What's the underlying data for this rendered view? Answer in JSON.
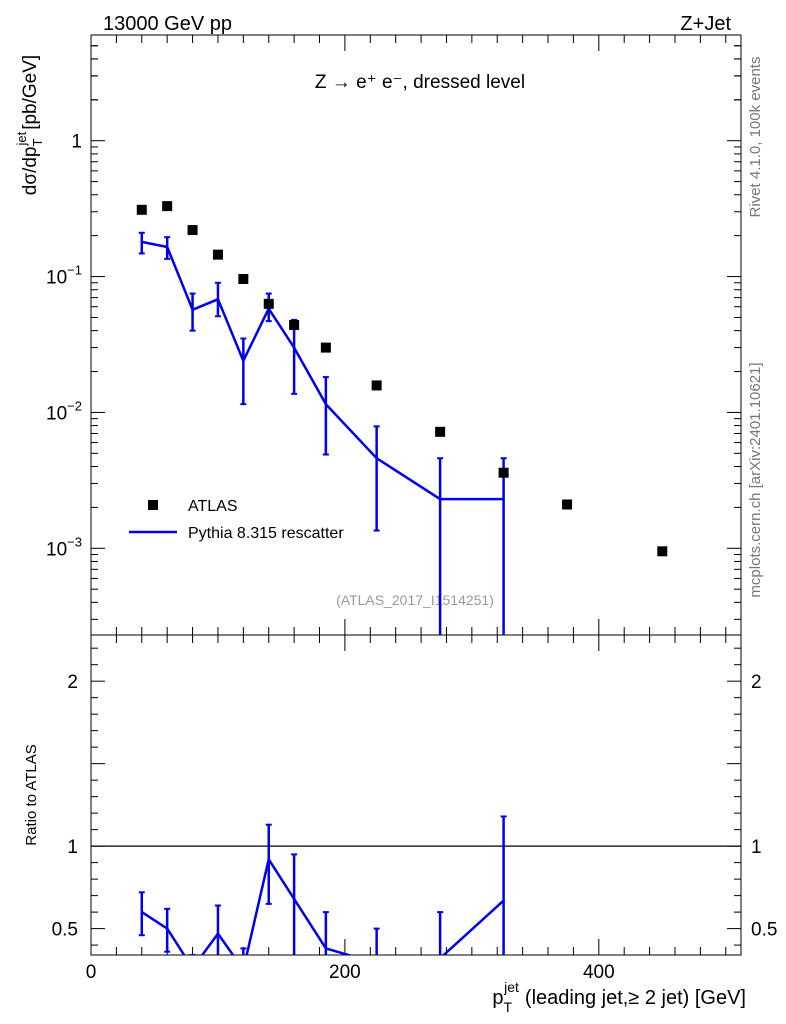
{
  "header": {
    "left": "13000 GeV pp",
    "right": "Z+Jet"
  },
  "side": {
    "rivet": "Rivet 4.1.0,  100k events",
    "mcplots": "mcplots.cern.ch [arXiv:2401.10621]"
  },
  "plot_label": "Z → e⁺ e⁻, dressed level",
  "analysis_id": "(ATLAS_2017_I1514251)",
  "colors": {
    "mc": "#0000ee",
    "data": "#000000",
    "analysis_text": "#999999",
    "side_text": "#777777"
  },
  "chart_data": [
    {
      "type": "scatter",
      "panel": "main",
      "ylabel": "dσ/dp_T^jet [pb/GeV]",
      "yscale": "log",
      "ylim": [
        0.00023,
        6
      ],
      "xlim": [
        0,
        512
      ],
      "yticks": [
        {
          "v": 1,
          "base": "1",
          "exp": ""
        },
        {
          "v": 0.1,
          "base": "10",
          "exp": "−1"
        },
        {
          "v": 0.01,
          "base": "10",
          "exp": "−2"
        },
        {
          "v": 0.001,
          "base": "10",
          "exp": "−3"
        }
      ],
      "legend_placement": "lower-left",
      "series": [
        {
          "name": "ATLAS",
          "style": "markers",
          "x": [
            40,
            60,
            80,
            100,
            120,
            140,
            160,
            185,
            225,
            275,
            325,
            375,
            450
          ],
          "y": [
            0.31,
            0.33,
            0.22,
            0.145,
            0.096,
            0.063,
            0.044,
            0.03,
            0.0158,
            0.0072,
            0.0036,
            0.0021,
            0.00095
          ]
        },
        {
          "name": "Pythia 8.315 rescatter",
          "style": "line",
          "x": [
            40,
            60,
            80,
            100,
            120,
            140,
            160,
            185,
            225,
            275,
            325
          ],
          "y": [
            0.18,
            0.165,
            0.057,
            0.068,
            0.024,
            0.058,
            0.03,
            0.0115,
            0.0046,
            0.0023,
            0.0023
          ],
          "yerr_low": [
            0.148,
            0.135,
            0.04,
            0.051,
            0.0115,
            0.047,
            0.0137,
            0.0049,
            0.00135,
            0.0,
            0.0
          ],
          "yerr_high": [
            0.21,
            0.195,
            0.075,
            0.09,
            0.035,
            0.075,
            0.048,
            0.0182,
            0.0079,
            0.0046,
            0.0046
          ],
          "step_segments": [
            [
              250,
              300
            ],
            [
              300,
              350
            ]
          ]
        }
      ]
    },
    {
      "type": "line",
      "panel": "ratio",
      "ylabel": "Ratio to ATLAS",
      "xlabel": "p_T^jet (leading jet,≥ 2 jet) [GeV]",
      "ylim": [
        0.34,
        2.28
      ],
      "xlim": [
        0,
        512
      ],
      "yticks": [
        0.5,
        1,
        2
      ],
      "xticks": [
        0,
        200,
        400
      ],
      "reference_line": 1,
      "series": [
        {
          "name": "Pythia 8.315 rescatter",
          "x": [
            40,
            60,
            80,
            100,
            120,
            140,
            160,
            185,
            225,
            275,
            325
          ],
          "y": [
            0.6,
            0.5,
            0.26,
            0.47,
            0.25,
            0.92,
            0.68,
            0.38,
            0.29,
            0.32,
            0.67
          ],
          "yerr_low": [
            0.46,
            0.36,
            0.2,
            0.31,
            0.1,
            0.65,
            0.32,
            0.15,
            0.08,
            0.0,
            0.0
          ],
          "yerr_high": [
            0.72,
            0.62,
            0.34,
            0.64,
            0.38,
            1.13,
            0.95,
            0.6,
            0.5,
            0.6,
            1.18
          ]
        }
      ]
    }
  ]
}
